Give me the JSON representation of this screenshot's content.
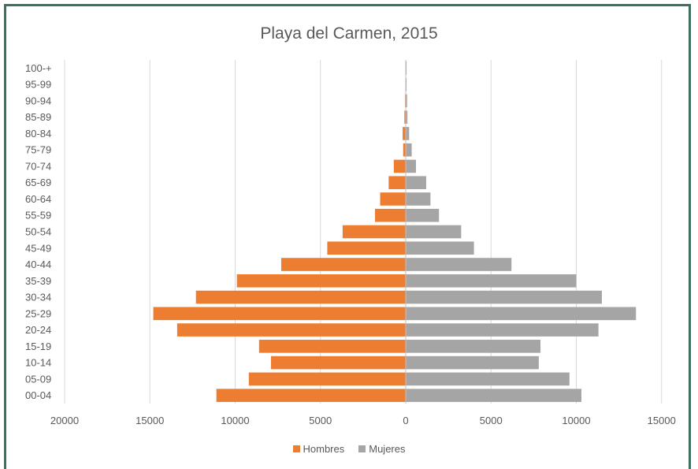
{
  "chart_data": {
    "type": "bar",
    "orientation": "horizontal",
    "title": "Playa del Carmen, 2015",
    "categories": [
      "100-+",
      "95-99",
      "90-94",
      "85-89",
      "80-84",
      "75-79",
      "70-74",
      "65-69",
      "60-64",
      "55-59",
      "50-54",
      "45-49",
      "40-44",
      "35-39",
      "30-34",
      "25-29",
      "20-24",
      "15-19",
      "10-14",
      "05-09",
      "00-04"
    ],
    "series": [
      {
        "name": "Hombres",
        "color": "#ed7d31",
        "values": [
          20,
          20,
          40,
          80,
          180,
          150,
          700,
          1000,
          1500,
          1800,
          3700,
          4600,
          7300,
          9900,
          12300,
          14800,
          13400,
          8600,
          7900,
          9200,
          11100
        ]
      },
      {
        "name": "Mujeres",
        "color": "#a5a5a5",
        "values": [
          50,
          50,
          80,
          100,
          200,
          350,
          600,
          1200,
          1450,
          1950,
          3250,
          4000,
          6200,
          10000,
          11500,
          13500,
          11300,
          7900,
          7800,
          9600,
          10300
        ]
      }
    ],
    "x_ticks": [
      "20000",
      "15000",
      "10000",
      "5000",
      "0",
      "5000",
      "10000",
      "15000"
    ],
    "xlim": [
      -20000,
      15000
    ],
    "grid": true,
    "legend_position": "bottom"
  }
}
